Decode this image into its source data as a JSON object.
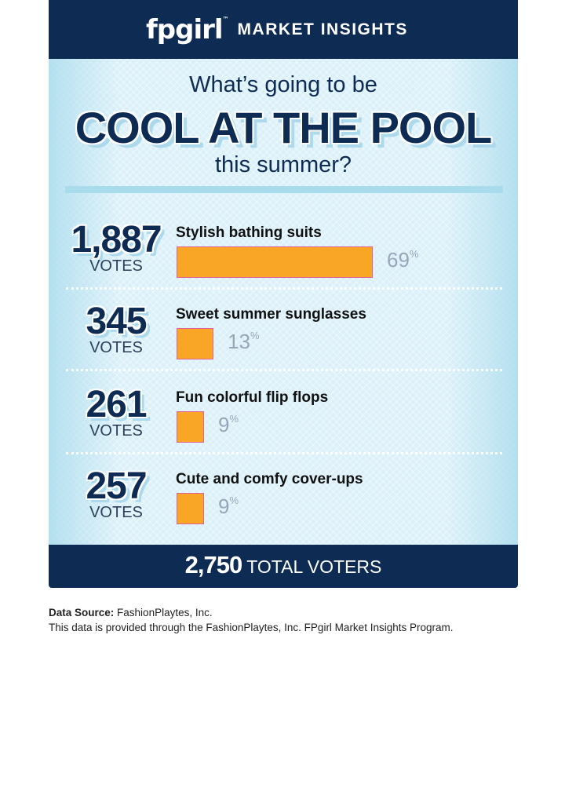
{
  "header": {
    "logo_mark": "fpgirl",
    "logo_tm": "™",
    "title": "MARKET INSIGHTS"
  },
  "title": {
    "line1": "What’s going to be",
    "line2": "COOL AT THE POOL",
    "line3": "this summer?"
  },
  "chart_data": {
    "type": "bar",
    "orientation": "horizontal",
    "categories": [
      "Stylish bathing suits",
      "Sweet summer sunglasses",
      "Fun colorful flip flops",
      "Cute and comfy cover-ups"
    ],
    "votes": [
      1887,
      345,
      261,
      257
    ],
    "votes_display": [
      "1,887",
      "345",
      "261",
      "257"
    ],
    "votes_label": "VOTES",
    "values": [
      69,
      13,
      9,
      9
    ],
    "value_unit": "%",
    "colors": {
      "bar": "#f9a626",
      "bar_border": "#e0619a",
      "navy": "#0e2b54"
    }
  },
  "footer": {
    "total_number": "2,750",
    "total_label": "TOTAL VOTERS"
  },
  "source": {
    "label": "Data Source:",
    "value": "FashionPlaytes, Inc.",
    "note": "This data is provided through the FashionPlaytes, Inc. FPgirl Market Insights Program."
  }
}
